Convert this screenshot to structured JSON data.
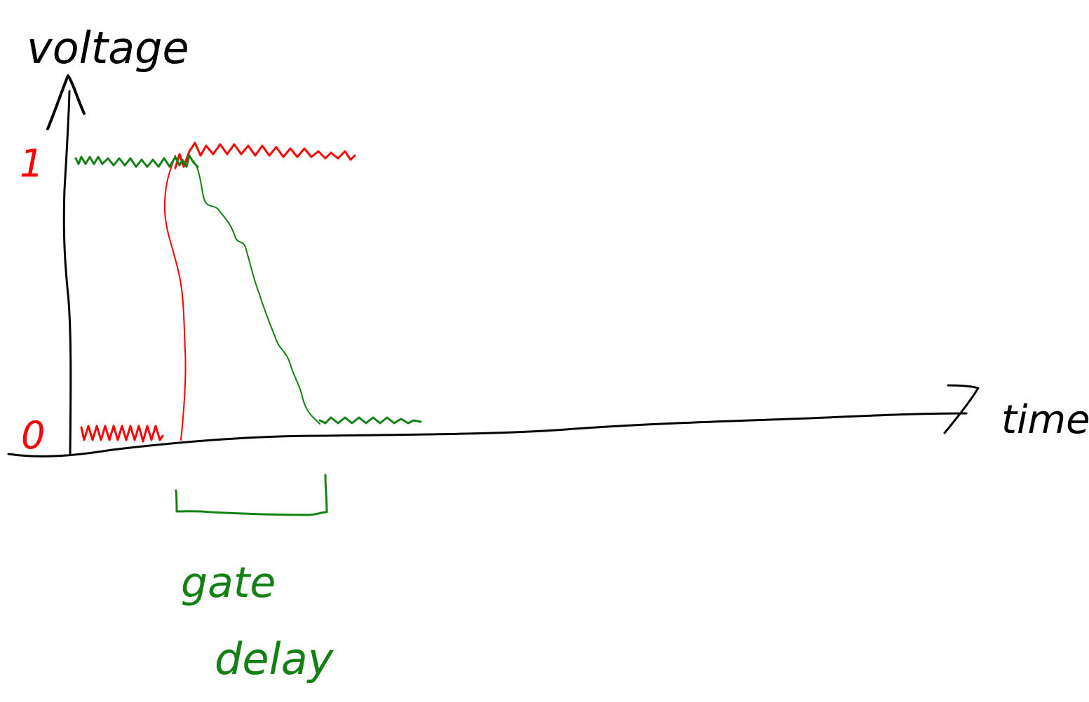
{
  "diagram": {
    "y_axis_label": "voltage",
    "x_axis_label": "time",
    "level_high_label": "1",
    "level_low_label": "0",
    "annotation_line1": "gate",
    "annotation_line2": "delay"
  },
  "colors": {
    "axis": "#000000",
    "input_signal": "#ff0000",
    "output_signal": "#138013",
    "annotation": "#138013",
    "background": "#ffffff"
  }
}
